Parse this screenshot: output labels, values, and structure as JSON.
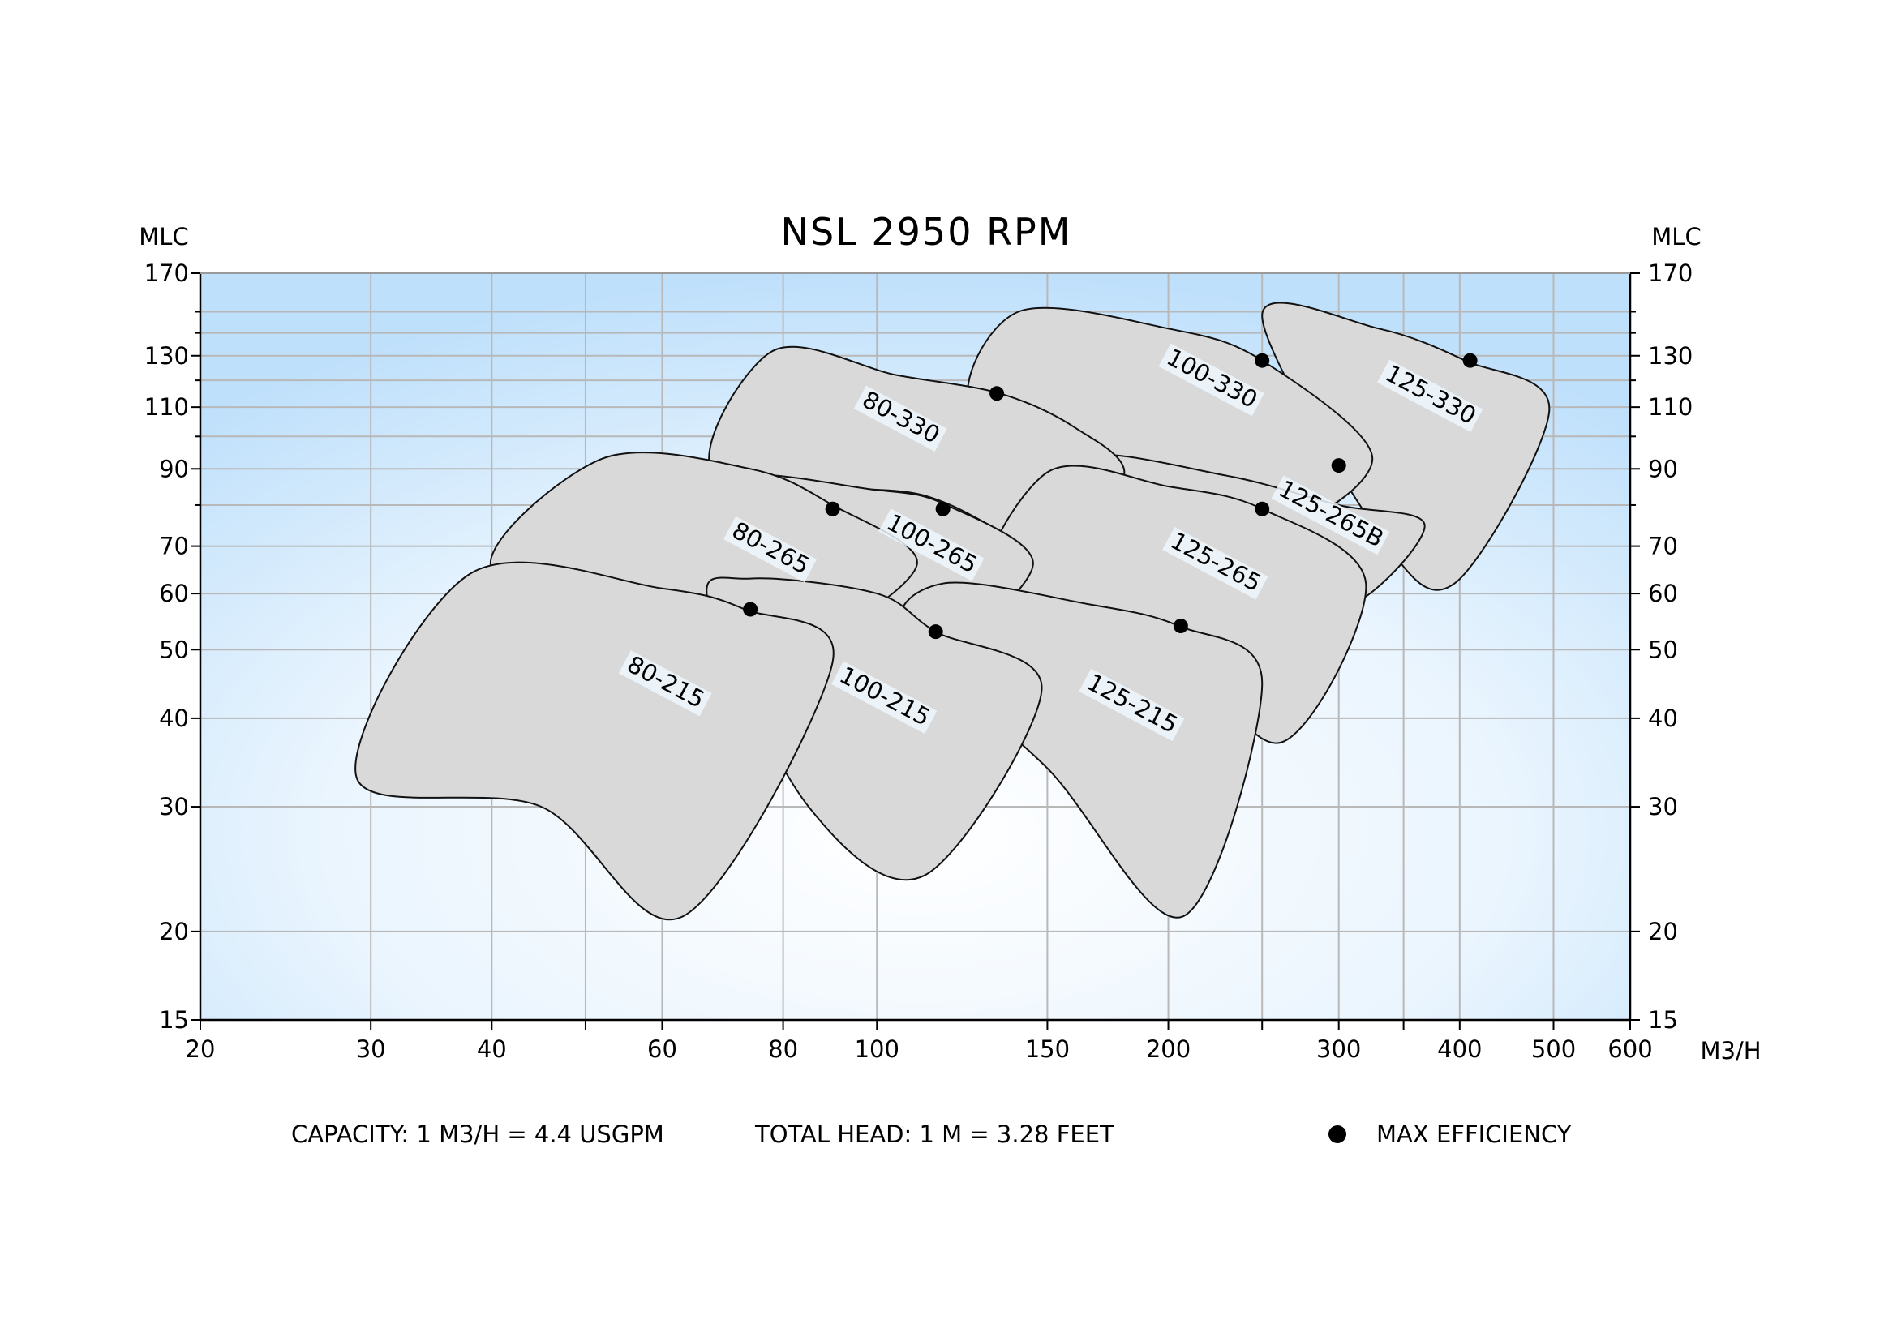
{
  "chart_data": {
    "type": "scatter",
    "title": "NSL 2950 RPM",
    "ylabel_left": "MLC",
    "ylabel_right": "MLC",
    "xlabel": "M3/H",
    "x_scale": "log",
    "y_scale": "log",
    "xlim": [
      20,
      600
    ],
    "ylim": [
      15,
      170
    ],
    "x_ticks": [
      20,
      30,
      40,
      60,
      80,
      100,
      150,
      200,
      300,
      400,
      500,
      600
    ],
    "x_minor_ticks": [
      50,
      250,
      350
    ],
    "y_ticks": [
      15,
      20,
      30,
      40,
      50,
      60,
      70,
      90,
      110,
      130,
      170
    ],
    "y_minor_ticks": [
      80,
      100,
      120,
      140,
      150
    ],
    "grid": true,
    "background": [
      "#bfe0fb",
      "#ffffff"
    ],
    "region_fill": "#d9d9d9",
    "series": [
      {
        "name": "125-330",
        "region": [
          [
            250,
            148
          ],
          [
            330,
            142
          ],
          [
            405,
            128
          ],
          [
            495,
            109
          ],
          [
            395,
            62
          ],
          [
            330,
            73
          ]
        ],
        "max_efficiency": [
          410,
          128
        ],
        "label_at": [
          370,
          112
        ]
      },
      {
        "name": "100-330",
        "region": [
          [
            140,
            150
          ],
          [
            200,
            142
          ],
          [
            250,
            128
          ],
          [
            325,
            93
          ],
          [
            250,
            74
          ],
          [
            170,
            95
          ],
          [
            125,
            110
          ]
        ],
        "max_efficiency": [
          250,
          128
        ],
        "label_at": [
          220,
          118
        ]
      },
      {
        "name": "125-265B",
        "region": [
          [
            165,
            93
          ],
          [
            230,
            88
          ],
          [
            300,
            80
          ],
          [
            368,
            75
          ],
          [
            310,
            58
          ],
          [
            255,
            62
          ],
          [
            200,
            67
          ]
        ],
        "max_efficiency": [
          300,
          91
        ],
        "label_at": [
          292,
          76
        ]
      },
      {
        "name": "80-330",
        "region": [
          [
            78,
            132
          ],
          [
            105,
            122
          ],
          [
            134,
            115
          ],
          [
            160,
            103
          ],
          [
            180,
            88
          ],
          [
            150,
            70
          ],
          [
            110,
            83
          ],
          [
            68,
            88
          ]
        ],
        "max_efficiency": [
          133,
          115
        ],
        "label_at": [
          105,
          104
        ]
      },
      {
        "name": "125-265",
        "region": [
          [
            150,
            89
          ],
          [
            200,
            85
          ],
          [
            250,
            79
          ],
          [
            320,
            62
          ],
          [
            262,
            37
          ],
          [
            200,
            50
          ],
          [
            130,
            58
          ]
        ],
        "max_efficiency": [
          250,
          79
        ],
        "label_at": [
          222,
          65
        ]
      },
      {
        "name": "100-265",
        "region": [
          [
            70,
            86
          ],
          [
            100,
            84
          ],
          [
            118,
            80
          ],
          [
            145,
            66
          ],
          [
            115,
            50
          ],
          [
            88,
            55
          ]
        ],
        "max_efficiency": [
          117,
          79
        ],
        "label_at": [
          113,
          69
        ]
      },
      {
        "name": "80-265",
        "region": [
          [
            52,
            93
          ],
          [
            74,
            90
          ],
          [
            90,
            80
          ],
          [
            110,
            66
          ],
          [
            85,
            52
          ],
          [
            62,
            56
          ],
          [
            40,
            65
          ]
        ],
        "max_efficiency": [
          90,
          79
        ],
        "label_at": [
          77,
          68
        ]
      },
      {
        "name": "125-215",
        "region": [
          [
            117,
            62
          ],
          [
            165,
            58
          ],
          [
            205,
            54
          ],
          [
            250,
            45
          ],
          [
            207,
            21
          ],
          [
            150,
            34
          ],
          [
            107,
            52
          ]
        ],
        "max_efficiency": [
          206,
          54
        ],
        "label_at": [
          182,
          41
        ]
      },
      {
        "name": "100-215",
        "region": [
          [
            74,
            63
          ],
          [
            100,
            60
          ],
          [
            115,
            53
          ],
          [
            148,
            44
          ],
          [
            112,
            24
          ],
          [
            85,
            30
          ],
          [
            67,
            58
          ]
        ],
        "max_efficiency": [
          115,
          53
        ],
        "label_at": [
          101,
          42
        ]
      },
      {
        "name": "80-215",
        "region": [
          [
            38,
            64
          ],
          [
            60,
            61
          ],
          [
            73,
            57
          ],
          [
            90,
            48
          ],
          [
            63,
            21
          ],
          [
            45,
            30
          ],
          [
            29,
            33
          ]
        ],
        "max_efficiency": [
          74,
          57
        ],
        "label_at": [
          60,
          44
        ]
      }
    ]
  },
  "footer": {
    "capacity": "CAPACITY: 1 M3/H = 4.4 USGPM",
    "total_head": "TOTAL HEAD: 1 M = 3.28 FEET",
    "max_efficiency": "MAX EFFICIENCY"
  }
}
